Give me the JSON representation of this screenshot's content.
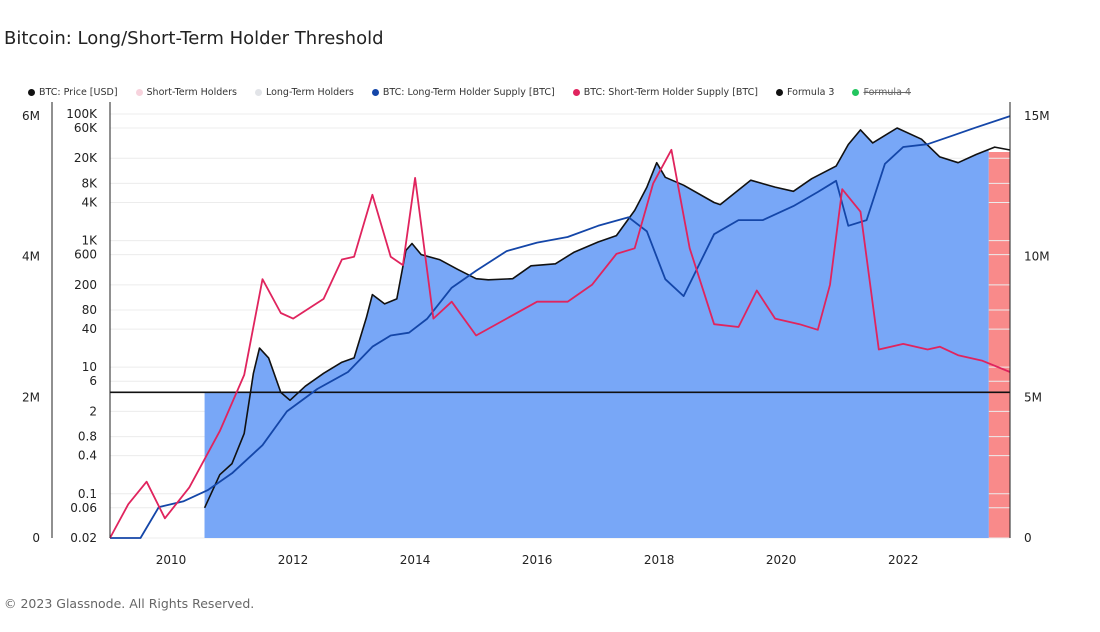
{
  "title": "Bitcoin: Long/Short-Term Holder Threshold",
  "footer": "© 2023 Glassnode. All Rights Reserved.",
  "legend": [
    {
      "label": "BTC: Price [USD]",
      "color": "#111111",
      "struck": false
    },
    {
      "label": "Short-Term Holders",
      "color": "#f7d3dd",
      "struck": false
    },
    {
      "label": "Long-Term Holders",
      "color": "#e2e4e8",
      "struck": false
    },
    {
      "label": "BTC: Long-Term Holder Supply [BTC]",
      "color": "#1446a8",
      "struck": false
    },
    {
      "label": "BTC: Short-Term Holder Supply [BTC]",
      "color": "#e0245e",
      "struck": false
    },
    {
      "label": "Formula 3",
      "color": "#111111",
      "struck": false
    },
    {
      "label": "Formula 4",
      "color": "#22c55e",
      "struck": true
    }
  ],
  "chart_data": {
    "type": "line",
    "x_ticks": [
      "2010",
      "2012",
      "2014",
      "2016",
      "2018",
      "2020",
      "2022"
    ],
    "x_range": [
      2009.0,
      2023.75
    ],
    "left_axis_outer": {
      "ticks": [
        "0",
        "2M",
        "4M",
        "6M"
      ],
      "values": [
        0,
        2000000,
        4000000,
        6000000
      ],
      "range": [
        0,
        6200000
      ]
    },
    "left_axis_price": {
      "scale": "log",
      "ticks": [
        "0.02",
        "0.06",
        "0.1",
        "0.4",
        "0.8",
        "2",
        "6",
        "10",
        "40",
        "80",
        "200",
        "600",
        "1K",
        "4K",
        "8K",
        "20K",
        "60K",
        "100K"
      ],
      "values": [
        0.02,
        0.06,
        0.1,
        0.4,
        0.8,
        2,
        6,
        10,
        40,
        80,
        200,
        600,
        1000,
        4000,
        8000,
        20000,
        60000,
        100000
      ]
    },
    "right_axis": {
      "ticks": [
        "0",
        "5M",
        "10M",
        "15M"
      ],
      "values": [
        0,
        5000000,
        10000000,
        15000000
      ],
      "range": [
        0,
        15500000
      ]
    },
    "threshold_price": 4,
    "red_zone_start": 2023.4,
    "series": [
      {
        "name": "BTC: Price [USD]",
        "axis": "price",
        "color": "#111111",
        "x": [
          2010.55,
          2010.8,
          2011.0,
          2011.2,
          2011.35,
          2011.45,
          2011.6,
          2011.8,
          2011.95,
          2012.2,
          2012.5,
          2012.8,
          2013.0,
          2013.2,
          2013.3,
          2013.5,
          2013.7,
          2013.85,
          2013.95,
          2014.1,
          2014.4,
          2014.7,
          2015.0,
          2015.2,
          2015.6,
          2015.9,
          2016.3,
          2016.6,
          2017.0,
          2017.3,
          2017.6,
          2017.8,
          2017.96,
          2018.1,
          2018.4,
          2018.9,
          2019.0,
          2019.5,
          2019.9,
          2020.2,
          2020.5,
          2020.9,
          2021.1,
          2021.3,
          2021.5,
          2021.9,
          2022.3,
          2022.6,
          2022.9,
          2023.2,
          2023.5,
          2023.75
        ],
        "y": [
          0.06,
          0.2,
          0.3,
          0.9,
          8,
          20,
          14,
          4,
          3,
          5,
          8,
          12,
          14,
          60,
          140,
          100,
          120,
          700,
          900,
          600,
          500,
          350,
          250,
          240,
          250,
          400,
          430,
          650,
          950,
          1200,
          3000,
          7000,
          17000,
          10000,
          7500,
          4000,
          3700,
          9000,
          7000,
          6000,
          9500,
          15000,
          33000,
          56000,
          35000,
          60000,
          40000,
          21000,
          17000,
          23000,
          30000,
          27000
        ]
      },
      {
        "name": "BTC: Long-Term Holder Supply [BTC]",
        "axis": "right",
        "color": "#1446a8",
        "x": [
          2009.0,
          2009.5,
          2009.8,
          2010.2,
          2010.6,
          2011.0,
          2011.5,
          2011.9,
          2012.4,
          2012.9,
          2013.3,
          2013.6,
          2013.9,
          2014.2,
          2014.6,
          2015.0,
          2015.5,
          2016.0,
          2016.5,
          2017.0,
          2017.5,
          2017.8,
          2018.1,
          2018.4,
          2018.9,
          2019.3,
          2019.7,
          2020.2,
          2020.6,
          2020.9,
          2021.1,
          2021.4,
          2021.7,
          2022.0,
          2022.4,
          2022.8,
          2023.2,
          2023.75
        ],
        "y": [
          0,
          0,
          1100000,
          1300000,
          1700000,
          2300000,
          3300000,
          4500000,
          5300000,
          5900000,
          6800000,
          7200000,
          7300000,
          7800000,
          8900000,
          9500000,
          10200000,
          10500000,
          10700000,
          11100000,
          11400000,
          10900000,
          9200000,
          8600000,
          10800000,
          11300000,
          11300000,
          11800000,
          12300000,
          12700000,
          11100000,
          11300000,
          13300000,
          13900000,
          14000000,
          14300000,
          14600000,
          15000000
        ]
      },
      {
        "name": "BTC: Short-Term Holder Supply [BTC]",
        "axis": "right",
        "color": "#e0245e",
        "x": [
          2009.0,
          2009.3,
          2009.6,
          2009.9,
          2010.3,
          2010.8,
          2011.2,
          2011.5,
          2011.8,
          2012.0,
          2012.5,
          2012.8,
          2013.0,
          2013.3,
          2013.6,
          2013.8,
          2014.0,
          2014.3,
          2014.6,
          2015.0,
          2015.5,
          2016.0,
          2016.5,
          2016.9,
          2017.3,
          2017.6,
          2017.9,
          2018.2,
          2018.5,
          2018.9,
          2019.3,
          2019.6,
          2019.9,
          2020.3,
          2020.6,
          2020.8,
          2021.0,
          2021.3,
          2021.6,
          2022.0,
          2022.4,
          2022.6,
          2022.9,
          2023.3,
          2023.75
        ],
        "y": [
          0,
          1200000,
          2000000,
          700000,
          1800000,
          3800000,
          5800000,
          9200000,
          8000000,
          7800000,
          8500000,
          9900000,
          10000000,
          12200000,
          10000000,
          9700000,
          12800000,
          7800000,
          8400000,
          7200000,
          7800000,
          8400000,
          8400000,
          9000000,
          10100000,
          10300000,
          12600000,
          13800000,
          10300000,
          7600000,
          7500000,
          8800000,
          7800000,
          7600000,
          7400000,
          9000000,
          12400000,
          11600000,
          6700000,
          6900000,
          6700000,
          6800000,
          6500000,
          6300000,
          5900000
        ]
      }
    ]
  }
}
